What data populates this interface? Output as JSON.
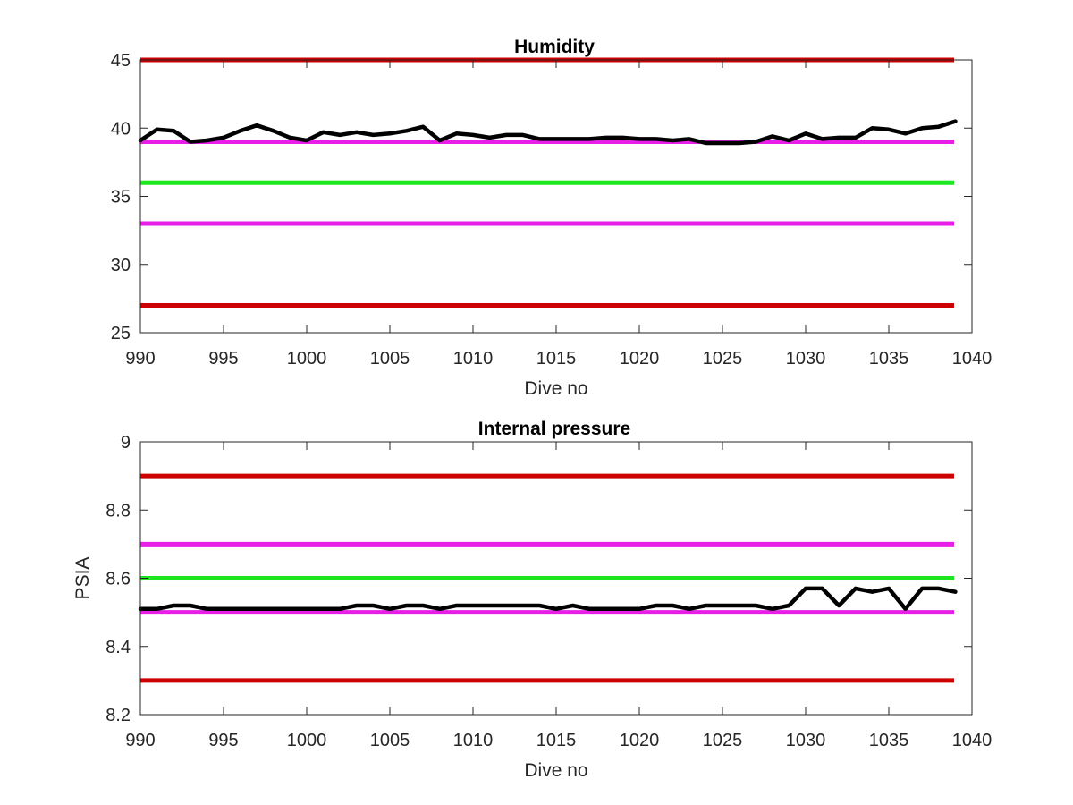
{
  "chart_data": [
    {
      "type": "line",
      "title": "Humidity",
      "xlabel": "Dive no",
      "ylabel": "",
      "xlim": [
        990,
        1040
      ],
      "ylim": [
        25,
        45
      ],
      "xticks": [
        "990",
        "995",
        "1000",
        "1005",
        "1010",
        "1015",
        "1020",
        "1025",
        "1030",
        "1035",
        "1040"
      ],
      "yticks": [
        "25",
        "30",
        "35",
        "40",
        "45"
      ],
      "reference_lines": [
        {
          "y": 45,
          "color": "#cc0000"
        },
        {
          "y": 39,
          "color": "#e61ee6"
        },
        {
          "y": 36,
          "color": "#1ee61e"
        },
        {
          "y": 33,
          "color": "#e61ee6"
        },
        {
          "y": 27,
          "color": "#cc0000"
        }
      ],
      "series": [
        {
          "color": "#000000",
          "x": [
            990,
            991,
            992,
            993,
            994,
            995,
            996,
            997,
            998,
            999,
            1000,
            1001,
            1002,
            1003,
            1004,
            1005,
            1006,
            1007,
            1008,
            1009,
            1010,
            1011,
            1012,
            1013,
            1014,
            1015,
            1016,
            1017,
            1018,
            1019,
            1020,
            1021,
            1022,
            1023,
            1024,
            1025,
            1026,
            1027,
            1028,
            1029,
            1030,
            1031,
            1032,
            1033,
            1034,
            1035,
            1036,
            1037,
            1038,
            1039
          ],
          "y": [
            39.1,
            39.9,
            39.8,
            39.0,
            39.1,
            39.3,
            39.8,
            40.2,
            39.8,
            39.3,
            39.1,
            39.7,
            39.5,
            39.7,
            39.5,
            39.6,
            39.8,
            40.1,
            39.1,
            39.6,
            39.5,
            39.3,
            39.5,
            39.5,
            39.2,
            39.2,
            39.2,
            39.2,
            39.3,
            39.3,
            39.2,
            39.2,
            39.1,
            39.2,
            38.9,
            38.9,
            38.9,
            39.0,
            39.4,
            39.1,
            39.6,
            39.2,
            39.3,
            39.3,
            40.0,
            39.9,
            39.6,
            40.0,
            40.1,
            40.5
          ]
        }
      ]
    },
    {
      "type": "line",
      "title": "Internal pressure",
      "xlabel": "Dive no",
      "ylabel": "PSIA",
      "xlim": [
        990,
        1040
      ],
      "ylim": [
        8.2,
        9.0
      ],
      "xticks": [
        "990",
        "995",
        "1000",
        "1005",
        "1010",
        "1015",
        "1020",
        "1025",
        "1030",
        "1035",
        "1040"
      ],
      "yticks": [
        "8.2",
        "8.4",
        "8.6",
        "8.8",
        "9"
      ],
      "reference_lines": [
        {
          "y": 8.9,
          "color": "#cc0000"
        },
        {
          "y": 8.7,
          "color": "#e61ee6"
        },
        {
          "y": 8.6,
          "color": "#1ee61e"
        },
        {
          "y": 8.5,
          "color": "#e61ee6"
        },
        {
          "y": 8.3,
          "color": "#cc0000"
        }
      ],
      "series": [
        {
          "color": "#000000",
          "x": [
            990,
            991,
            992,
            993,
            994,
            995,
            996,
            997,
            998,
            999,
            1000,
            1001,
            1002,
            1003,
            1004,
            1005,
            1006,
            1007,
            1008,
            1009,
            1010,
            1011,
            1012,
            1013,
            1014,
            1015,
            1016,
            1017,
            1018,
            1019,
            1020,
            1021,
            1022,
            1023,
            1024,
            1025,
            1026,
            1027,
            1028,
            1029,
            1030,
            1031,
            1032,
            1033,
            1034,
            1035,
            1036,
            1037,
            1038,
            1039
          ],
          "y": [
            8.51,
            8.51,
            8.52,
            8.52,
            8.51,
            8.51,
            8.51,
            8.51,
            8.51,
            8.51,
            8.51,
            8.51,
            8.51,
            8.52,
            8.52,
            8.51,
            8.52,
            8.52,
            8.51,
            8.52,
            8.52,
            8.52,
            8.52,
            8.52,
            8.52,
            8.51,
            8.52,
            8.51,
            8.51,
            8.51,
            8.51,
            8.52,
            8.52,
            8.51,
            8.52,
            8.52,
            8.52,
            8.52,
            8.51,
            8.52,
            8.57,
            8.57,
            8.52,
            8.57,
            8.56,
            8.57,
            8.51,
            8.57,
            8.57,
            8.56
          ]
        }
      ]
    }
  ]
}
